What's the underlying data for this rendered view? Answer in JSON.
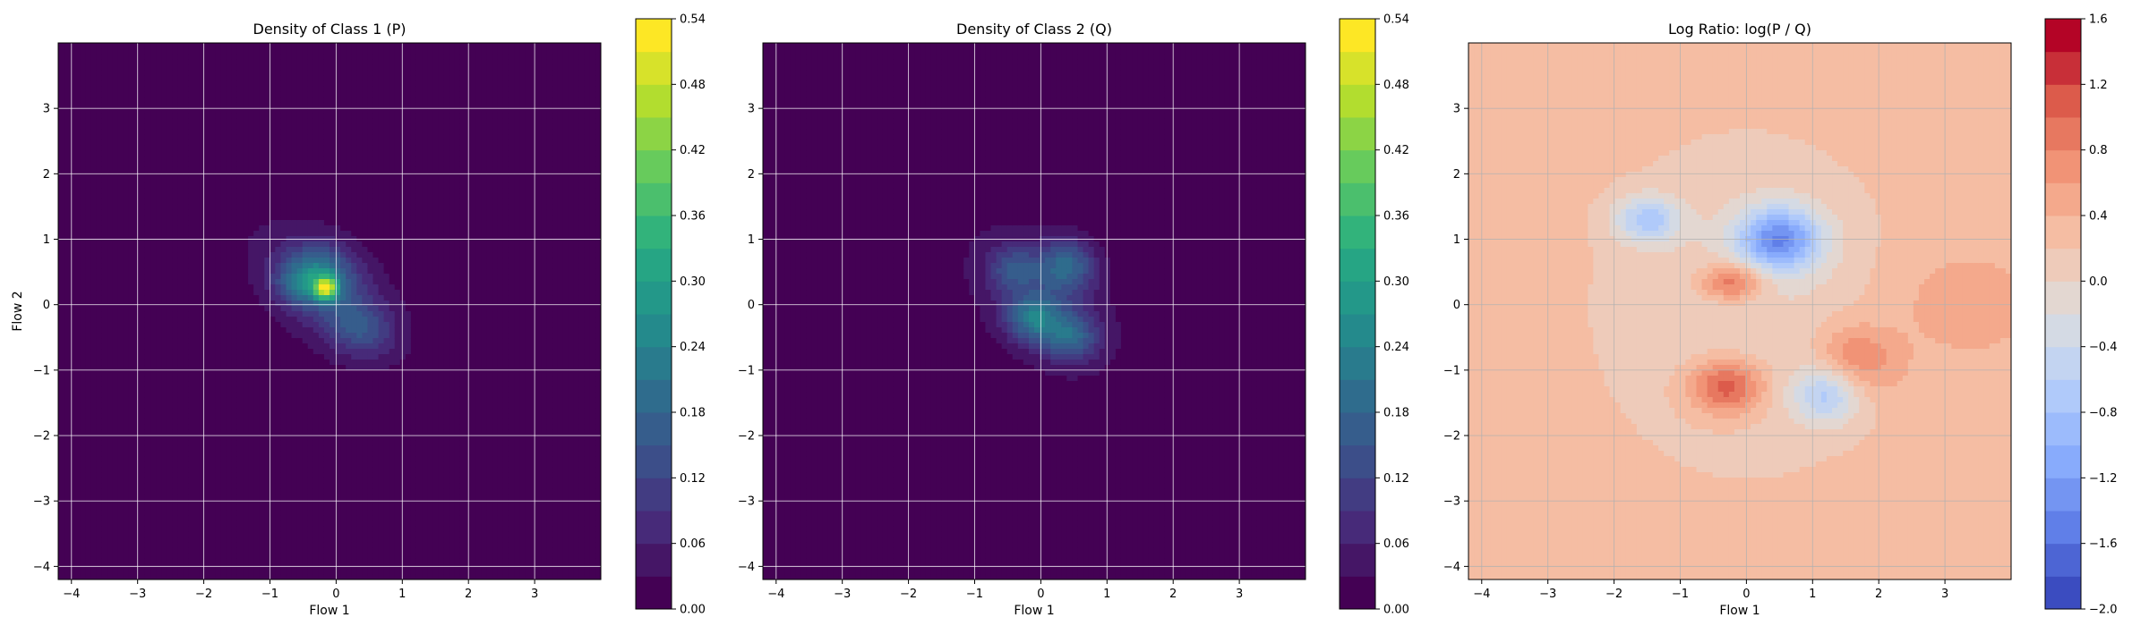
{
  "chart_data": [
    {
      "type": "heatmap",
      "title": "Density of Class 1 (P)",
      "xlabel": "Flow 1",
      "ylabel": "Flow 2",
      "xlim": [
        -4.2,
        4.0
      ],
      "ylim": [
        -4.2,
        4.0
      ],
      "xticks": [
        "−4",
        "−3",
        "−2",
        "−1",
        "0",
        "1",
        "2",
        "3"
      ],
      "yticks": [
        "−4",
        "−3",
        "−2",
        "−1",
        "0",
        "1",
        "2",
        "3"
      ],
      "grid": true,
      "colormap": "viridis",
      "colorbar": {
        "min": 0.0,
        "max": 0.54,
        "ticks": [
          "0.00",
          "0.06",
          "0.12",
          "0.18",
          "0.24",
          "0.30",
          "0.36",
          "0.42",
          "0.48",
          "0.54"
        ]
      },
      "blobs": [
        {
          "x": -0.15,
          "y": 0.2,
          "sx": 0.95,
          "sy": 0.55,
          "rot": -40,
          "amp": 0.09
        },
        {
          "x": -0.25,
          "y": 0.45,
          "sx": 0.35,
          "sy": 0.3,
          "rot": 0,
          "amp": 0.16
        },
        {
          "x": -0.15,
          "y": 0.25,
          "sx": 0.12,
          "sy": 0.12,
          "rot": 0,
          "amp": 0.32
        },
        {
          "x": 0.35,
          "y": -0.35,
          "sx": 0.35,
          "sy": 0.28,
          "rot": -30,
          "amp": 0.1
        },
        {
          "x": -0.55,
          "y": 0.3,
          "sx": 0.25,
          "sy": 0.22,
          "rot": 0,
          "amp": 0.08
        }
      ]
    },
    {
      "type": "heatmap",
      "title": "Density of Class 2 (Q)",
      "xlabel": "Flow 1",
      "ylabel": "",
      "xlim": [
        -4.2,
        4.0
      ],
      "ylim": [
        -4.2,
        4.0
      ],
      "xticks": [
        "−4",
        "−3",
        "−2",
        "−1",
        "0",
        "1",
        "2",
        "3"
      ],
      "yticks": [
        "−4",
        "−3",
        "−2",
        "−1",
        "0",
        "1",
        "2",
        "3"
      ],
      "grid": true,
      "colormap": "viridis",
      "colorbar": {
        "min": 0.0,
        "max": 0.54,
        "ticks": [
          "0.00",
          "0.06",
          "0.12",
          "0.18",
          "0.24",
          "0.30",
          "0.36",
          "0.42",
          "0.48",
          "0.54"
        ]
      },
      "blobs": [
        {
          "x": 0.0,
          "y": 0.1,
          "sx": 0.95,
          "sy": 0.6,
          "rot": -45,
          "amp": 0.08
        },
        {
          "x": 0.4,
          "y": 0.6,
          "sx": 0.3,
          "sy": 0.28,
          "rot": 0,
          "amp": 0.15
        },
        {
          "x": -0.1,
          "y": -0.2,
          "sx": 0.28,
          "sy": 0.25,
          "rot": 0,
          "amp": 0.17
        },
        {
          "x": 0.45,
          "y": -0.5,
          "sx": 0.28,
          "sy": 0.25,
          "rot": 0,
          "amp": 0.14
        },
        {
          "x": -0.4,
          "y": 0.55,
          "sx": 0.25,
          "sy": 0.22,
          "rot": 0,
          "amp": 0.1
        }
      ]
    },
    {
      "type": "heatmap",
      "title": "Log Ratio: log(P / Q)",
      "xlabel": "Flow 1",
      "ylabel": "",
      "xlim": [
        -4.2,
        4.0
      ],
      "ylim": [
        -4.2,
        4.0
      ],
      "xticks": [
        "−4",
        "−3",
        "−2",
        "−1",
        "0",
        "1",
        "2",
        "3"
      ],
      "yticks": [
        "−4",
        "−3",
        "−2",
        "−1",
        "0",
        "1",
        "2",
        "3"
      ],
      "grid": true,
      "colormap": "coolwarm",
      "colorbar": {
        "min": -2.0,
        "max": 1.6,
        "ticks": [
          "−2.0",
          "−1.6",
          "−1.2",
          "−0.8",
          "−0.4",
          "0.0",
          "0.4",
          "0.8",
          "1.2",
          "1.6"
        ]
      },
      "background": 0.3,
      "blobs": [
        {
          "x": 0.5,
          "y": 1.0,
          "sx": 0.45,
          "sy": 0.35,
          "rot": 0,
          "amp": -1.5
        },
        {
          "x": -1.5,
          "y": 1.3,
          "sx": 0.35,
          "sy": 0.25,
          "rot": 0,
          "amp": -0.9
        },
        {
          "x": -0.2,
          "y": 0.35,
          "sx": 0.35,
          "sy": 0.2,
          "rot": 0,
          "amp": 0.9
        },
        {
          "x": -0.3,
          "y": -1.25,
          "sx": 0.4,
          "sy": 0.3,
          "rot": 0,
          "amp": 1.0
        },
        {
          "x": 1.2,
          "y": -1.4,
          "sx": 0.35,
          "sy": 0.3,
          "rot": 0,
          "amp": -0.8
        },
        {
          "x": 0.0,
          "y": 0.0,
          "sx": 1.6,
          "sy": 1.8,
          "rot": 0,
          "amp": -0.3
        },
        {
          "x": 1.7,
          "y": -0.8,
          "sx": 0.45,
          "sy": 0.35,
          "rot": -20,
          "amp": 0.6
        },
        {
          "x": 3.2,
          "y": 0.0,
          "sx": 0.8,
          "sy": 0.6,
          "rot": 0,
          "amp": 0.25
        }
      ]
    }
  ]
}
